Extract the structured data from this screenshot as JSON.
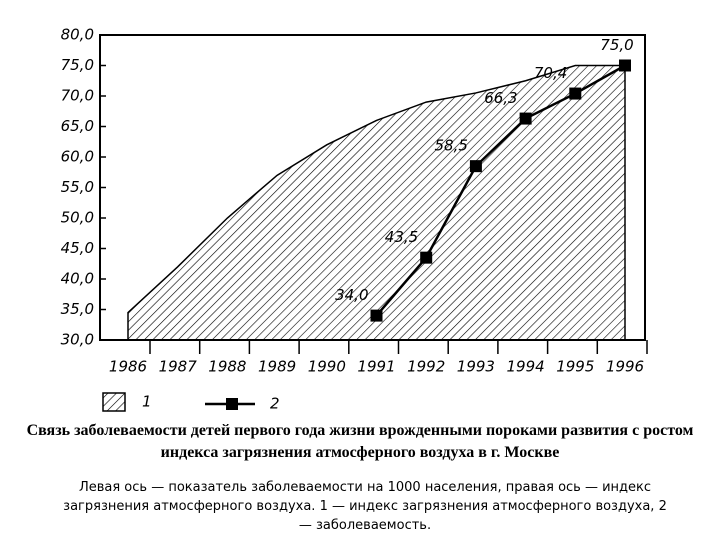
{
  "chart_data": {
    "type": "area-line",
    "categories": [
      "1986",
      "1987",
      "1988",
      "1989",
      "1990",
      "1991",
      "1992",
      "1993",
      "1994",
      "1995",
      "1996"
    ],
    "series": [
      {
        "name": "1",
        "color": "#000000",
        "style": "hatched-area",
        "values": [
          34.5,
          42,
          50,
          57,
          62,
          66,
          69,
          70.5,
          72.5,
          75,
          75
        ]
      },
      {
        "name": "2",
        "color": "#000000",
        "style": "line-square",
        "values": [
          null,
          null,
          null,
          null,
          null,
          34.0,
          43.5,
          58.5,
          66.3,
          70.4,
          75.0
        ],
        "value_labels": [
          null,
          null,
          null,
          null,
          null,
          "34,0",
          "43,5",
          "58,5",
          "66,3",
          "70,4",
          "75,0"
        ]
      }
    ],
    "ylim": [
      30,
      80
    ],
    "yticks": [
      {
        "value": 30,
        "label": "30,0"
      },
      {
        "value": 35,
        "label": "35,0"
      },
      {
        "value": 40,
        "label": "40,0"
      },
      {
        "value": 45,
        "label": "45,0"
      },
      {
        "value": 50,
        "label": "50,0"
      },
      {
        "value": 55,
        "label": "55,0"
      },
      {
        "value": 60,
        "label": "60,0"
      },
      {
        "value": 65,
        "label": "65,0"
      },
      {
        "value": 70,
        "label": "70,0"
      },
      {
        "value": 75,
        "label": "75,0"
      },
      {
        "value": 80,
        "label": "80,0"
      }
    ],
    "caption": "Связь заболеваемости детей первого года жизни врожденными пороками развития с ростом индекса загрязнения атмосферного воздуха в г. Москве",
    "note": "Левая ось — показатель заболеваемости на 1000 населения, правая ось — индекс загрязнения атмосферного воздуха. 1 — индекс загрязнения атмосферного воздуха, 2 — заболеваемость."
  }
}
